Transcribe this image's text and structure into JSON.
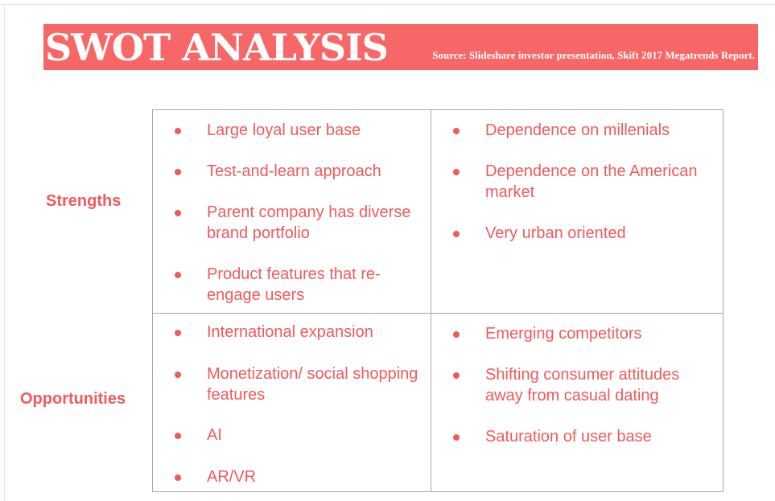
{
  "banner": {
    "title": "SWOT ANALYSIS",
    "source": "Source: Slideshare investor presentation, Skift 2017 Megatrends Report."
  },
  "row_labels": {
    "strengths": "Strengths",
    "opportunities": "Opportunities"
  },
  "grid": {
    "strengths": [
      "Large loyal  user base",
      "Test-and-learn approach",
      "Parent company has diverse brand portfolio",
      "Product features that re-engage users"
    ],
    "weaknesses": [
      "Dependence on millenials",
      "Dependence on the American market",
      "Very urban oriented"
    ],
    "opportunities": [
      "International expansion",
      "Monetization/ social shopping  features",
      "AI",
      "AR/VR"
    ],
    "threats": [
      "Emerging competitors",
      "Shifting consumer attitudes away from casual dating",
      "Saturation of user base"
    ]
  },
  "colors": {
    "banner": "#f86767",
    "text_accent": "#f05a5a",
    "grid_line": "#a6a6a6"
  }
}
